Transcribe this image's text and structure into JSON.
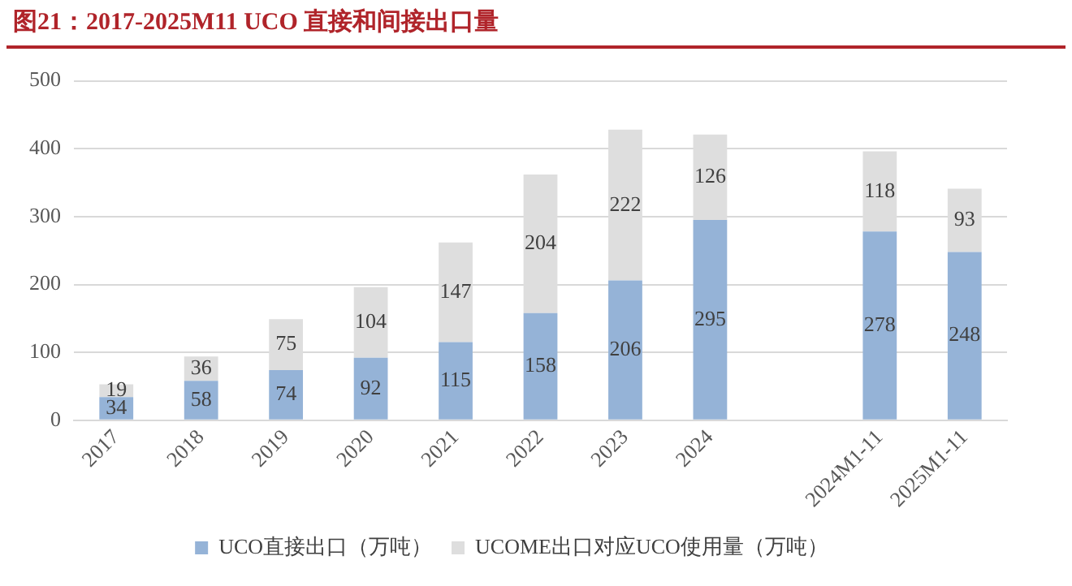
{
  "chart_data": {
    "type": "bar",
    "title": "图21：2017-2025M11 UCO 直接和间接出口量",
    "stacked": true,
    "categories": [
      "2017",
      "2018",
      "2019",
      "2020",
      "2021",
      "2022",
      "2023",
      "2024",
      null,
      "2024M1-11",
      "2025M1-11"
    ],
    "series": [
      {
        "name": "UCO直接出口（万吨）",
        "color": "#95b3d7",
        "values": [
          34,
          58,
          74,
          92,
          115,
          158,
          206,
          295,
          null,
          278,
          248
        ]
      },
      {
        "name": "UCOME出口对应UCO使用量（万吨）",
        "color": "#dedede",
        "values": [
          19,
          36,
          75,
          104,
          147,
          204,
          222,
          126,
          null,
          118,
          93
        ]
      }
    ],
    "ylim": [
      0,
      500
    ],
    "yticks": [
      0,
      100,
      200,
      300,
      400,
      500
    ],
    "grid": "y",
    "legend": "bottom",
    "data_labels": true
  }
}
